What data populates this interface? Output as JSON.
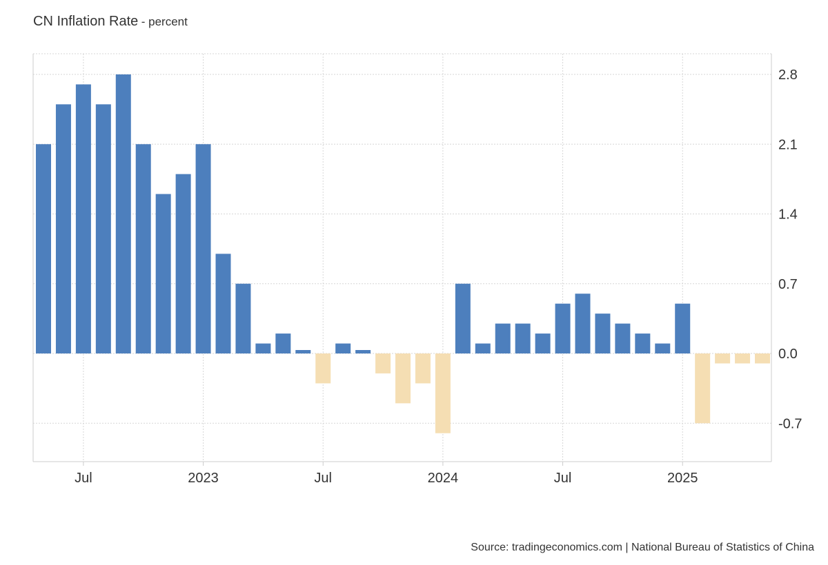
{
  "title": "CN Inflation Rate",
  "subtitle": "- percent",
  "source": "Source: tradingeconomics.com | National Bureau of Statistics of China",
  "colors": {
    "positive": "#4d7fbd",
    "negative": "#f5deb3",
    "grid": "#d6d6d6",
    "axis": "#cccccc",
    "text": "#333333"
  },
  "chart_data": {
    "type": "bar",
    "x": [
      "2022-05",
      "2022-06",
      "2022-07",
      "2022-08",
      "2022-09",
      "2022-10",
      "2022-11",
      "2022-12",
      "2023-01",
      "2023-02",
      "2023-03",
      "2023-04",
      "2023-05",
      "2023-06",
      "2023-07",
      "2023-08",
      "2023-09",
      "2023-10",
      "2023-11",
      "2023-12",
      "2024-01",
      "2024-02",
      "2024-03",
      "2024-04",
      "2024-05",
      "2024-06",
      "2024-07",
      "2024-08",
      "2024-09",
      "2024-10",
      "2024-11",
      "2024-12",
      "2025-01",
      "2025-02",
      "2025-03",
      "2025-04",
      "2025-05"
    ],
    "values": [
      2.1,
      2.5,
      2.7,
      2.5,
      2.8,
      2.1,
      1.6,
      1.8,
      2.1,
      1.0,
      0.7,
      0.1,
      0.2,
      0.0,
      -0.3,
      0.1,
      0.0,
      -0.2,
      -0.5,
      -0.3,
      -0.8,
      0.7,
      0.1,
      0.3,
      0.3,
      0.2,
      0.5,
      0.6,
      0.4,
      0.3,
      0.2,
      0.1,
      0.5,
      -0.7,
      -0.1,
      -0.1,
      -0.1
    ],
    "ylim": [
      -1.1,
      3.0
    ],
    "yticks": [
      2.8,
      2.1,
      1.4,
      0.7,
      0.0,
      -0.7
    ],
    "ytick_labels": [
      "2.8",
      "2.1",
      "1.4",
      "0.7",
      "0.0",
      "-0.7"
    ],
    "xticks": [
      {
        "date": "2022-07",
        "label": "Jul"
      },
      {
        "date": "2023-01",
        "label": "2023"
      },
      {
        "date": "2023-07",
        "label": "Jul"
      },
      {
        "date": "2024-01",
        "label": "2024"
      },
      {
        "date": "2024-07",
        "label": "Jul"
      },
      {
        "date": "2025-01",
        "label": "2025"
      }
    ],
    "grid": true,
    "y_axis_side": "right"
  }
}
